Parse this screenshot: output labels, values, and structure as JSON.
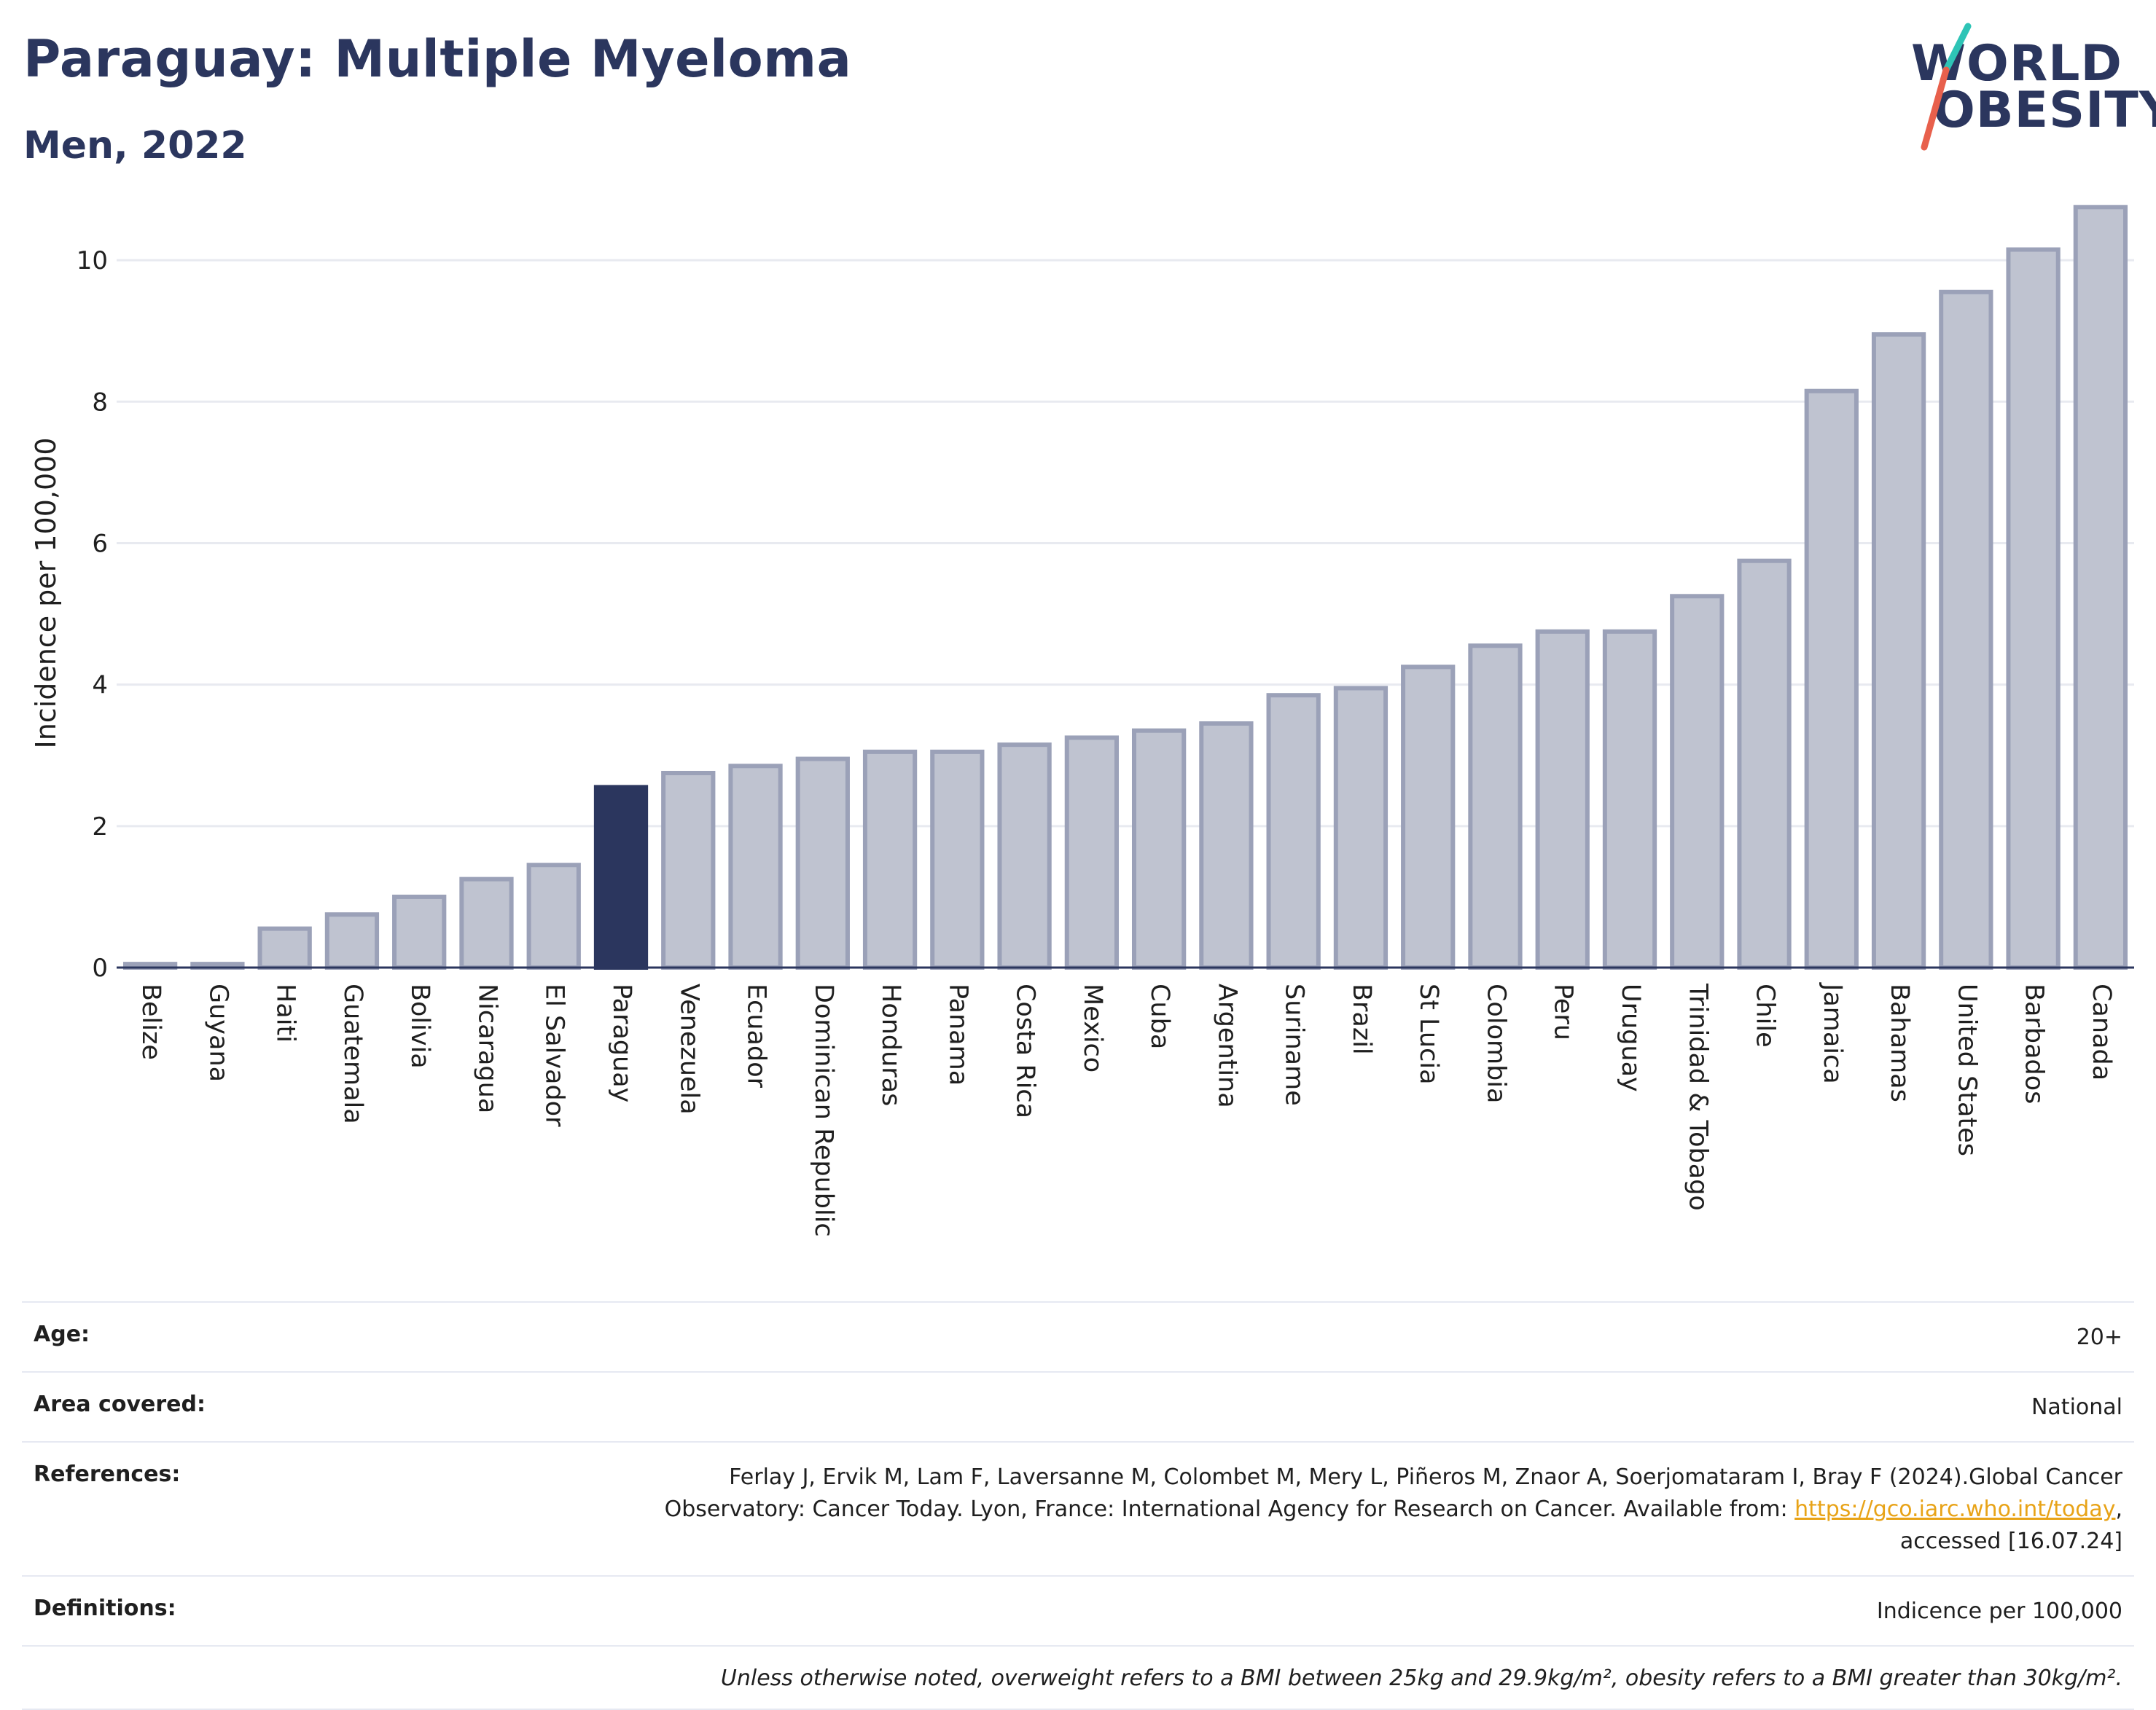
{
  "header": {
    "title": "Paraguay: Multiple Myeloma",
    "subtitle": "Men, 2022"
  },
  "logo": {
    "line1": "WORLD",
    "line2": "OBESITY",
    "colors": {
      "text": "#2b365e",
      "slash_top": "#2ec4b6",
      "slash_bottom": "#e8604c"
    }
  },
  "chart_data": {
    "type": "bar",
    "ylabel": "Incidence per 100,000",
    "xlabel": "",
    "ylim": [
      0,
      11
    ],
    "yticks": [
      0,
      2,
      4,
      6,
      8,
      10
    ],
    "grid": true,
    "highlight": "Paraguay",
    "colors": {
      "bar": "#bfc3d0",
      "bar_border": "#9ba1b8",
      "highlight": "#2b365e"
    },
    "categories": [
      "Belize",
      "Guyana",
      "Haiti",
      "Guatemala",
      "Bolivia",
      "Nicaragua",
      "El Salvador",
      "Paraguay",
      "Venezuela",
      "Ecuador",
      "Dominican Republic",
      "Honduras",
      "Panama",
      "Costa Rica",
      "Mexico",
      "Cuba",
      "Argentina",
      "Suriname",
      "Brazil",
      "St Lucia",
      "Colombia",
      "Peru",
      "Uruguay",
      "Trinidad & Tobago",
      "Chile",
      "Jamaica",
      "Bahamas",
      "United States",
      "Barbados",
      "Canada"
    ],
    "values": [
      0.05,
      0.05,
      0.55,
      0.75,
      1.0,
      1.25,
      1.45,
      2.55,
      2.75,
      2.85,
      2.95,
      3.05,
      3.05,
      3.15,
      3.25,
      3.35,
      3.45,
      3.85,
      3.95,
      4.25,
      4.55,
      4.75,
      4.75,
      5.25,
      5.75,
      8.15,
      8.95,
      9.55,
      10.15,
      10.75
    ]
  },
  "info": {
    "age_label": "Age:",
    "age_value": "20+",
    "area_label": "Area covered:",
    "area_value": "National",
    "references_label": "References:",
    "references_line1": "Ferlay J, Ervik M, Lam F, Laversanne M, Colombet M, Mery L, Piñeros M, Znaor A, Soerjomataram I, Bray F (2024).Global Cancer",
    "references_line2_pre": "Observatory: Cancer Today. Lyon, France: International Agency for Research on Cancer. Available from: ",
    "references_link": "https://gco.iarc.who.int/today",
    "references_line2_post": ",",
    "references_line3": "accessed [16.07.24]",
    "definitions_label": "Definitions:",
    "definitions_value": "Indicence per 100,000",
    "note": "Unless otherwise noted, overweight refers to a BMI between 25kg and 29.9kg/m², obesity refers to a BMI greater than 30kg/m²."
  }
}
